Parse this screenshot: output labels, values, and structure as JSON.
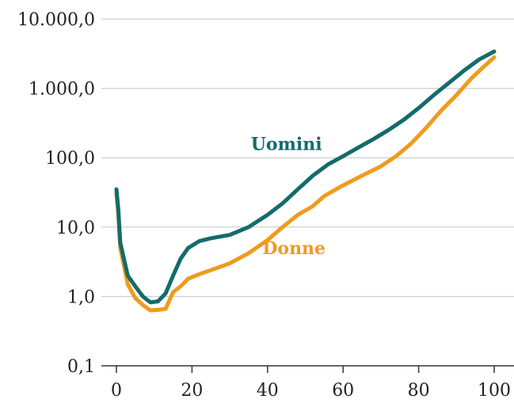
{
  "chart_data": {
    "type": "line",
    "title": "",
    "xlabel": "",
    "ylabel": "",
    "y_scale": "log",
    "xlim": [
      0,
      100
    ],
    "ylim": [
      0.1,
      10000
    ],
    "grid": "horizontal",
    "legend": "inline labels",
    "x_ticks": [
      {
        "value": 0,
        "label": "0"
      },
      {
        "value": 20,
        "label": "20"
      },
      {
        "value": 40,
        "label": "40"
      },
      {
        "value": 60,
        "label": "60"
      },
      {
        "value": 80,
        "label": "80"
      },
      {
        "value": 100,
        "label": "100"
      }
    ],
    "y_ticks": [
      {
        "value": 10000,
        "label": "10.000,0"
      },
      {
        "value": 1000,
        "label": "1.000,0"
      },
      {
        "value": 100,
        "label": "100,0"
      },
      {
        "value": 10,
        "label": "10,0"
      },
      {
        "value": 1,
        "label": "1,0"
      },
      {
        "value": 0.1,
        "label": "0,1"
      }
    ],
    "series": [
      {
        "name": "Uomini",
        "color": "#146b6b",
        "label_at": {
          "x": 45,
          "y": 160
        },
        "points": [
          [
            0,
            35
          ],
          [
            0.5,
            18
          ],
          [
            1,
            6
          ],
          [
            3,
            2
          ],
          [
            5,
            1.4
          ],
          [
            7,
            1.0
          ],
          [
            9,
            0.82
          ],
          [
            11,
            0.85
          ],
          [
            13,
            1.1
          ],
          [
            15,
            2.0
          ],
          [
            17,
            3.5
          ],
          [
            19,
            5.0
          ],
          [
            22,
            6.3
          ],
          [
            25,
            6.9
          ],
          [
            30,
            7.7
          ],
          [
            35,
            10
          ],
          [
            40,
            15
          ],
          [
            44,
            22
          ],
          [
            48,
            35
          ],
          [
            52,
            55
          ],
          [
            56,
            80
          ],
          [
            60,
            105
          ],
          [
            64,
            140
          ],
          [
            68,
            185
          ],
          [
            72,
            250
          ],
          [
            76,
            350
          ],
          [
            80,
            520
          ],
          [
            84,
            800
          ],
          [
            88,
            1200
          ],
          [
            92,
            1800
          ],
          [
            96,
            2600
          ],
          [
            100,
            3400
          ]
        ]
      },
      {
        "name": "Donne",
        "color": "#ee9b1f",
        "label_at": {
          "x": 47,
          "y": 5
        },
        "points": [
          [
            0,
            30
          ],
          [
            0.5,
            15
          ],
          [
            1,
            5
          ],
          [
            3,
            1.5
          ],
          [
            5,
            0.95
          ],
          [
            7,
            0.75
          ],
          [
            9,
            0.63
          ],
          [
            11,
            0.64
          ],
          [
            13,
            0.66
          ],
          [
            15,
            1.15
          ],
          [
            17,
            1.4
          ],
          [
            19,
            1.8
          ],
          [
            22,
            2.1
          ],
          [
            26,
            2.5
          ],
          [
            30,
            3.0
          ],
          [
            35,
            4.2
          ],
          [
            40,
            6.5
          ],
          [
            44,
            10
          ],
          [
            48,
            15
          ],
          [
            52,
            20
          ],
          [
            55,
            28
          ],
          [
            60,
            40
          ],
          [
            65,
            55
          ],
          [
            70,
            75
          ],
          [
            74,
            105
          ],
          [
            78,
            160
          ],
          [
            82,
            270
          ],
          [
            86,
            480
          ],
          [
            90,
            800
          ],
          [
            94,
            1400
          ],
          [
            97,
            2000
          ],
          [
            100,
            2800
          ]
        ]
      }
    ]
  }
}
